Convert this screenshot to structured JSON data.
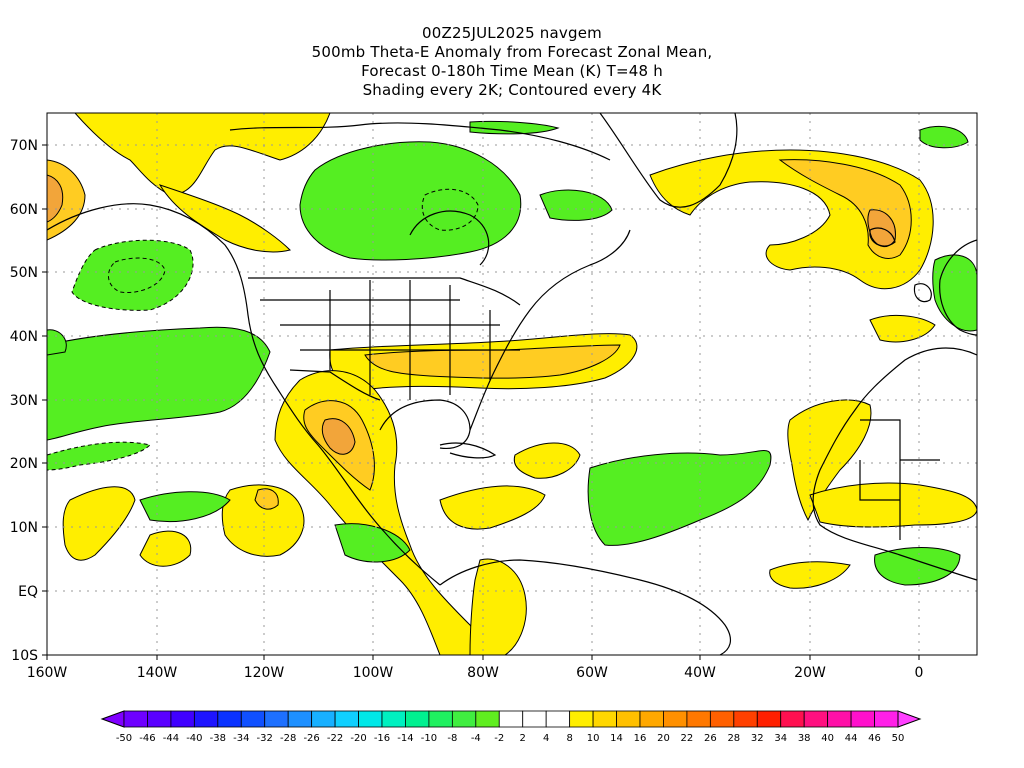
{
  "title": {
    "lines": [
      "00Z25JUL2025 navgem",
      "500mb Theta-E Anomaly from Forecast Zonal Mean,",
      "Forecast 0-180h Time Mean (K) T=48 h",
      "Shading every 2K; Contoured every 4K"
    ]
  },
  "map": {
    "lon_range": [
      -160,
      10
    ],
    "lat_range": [
      -10,
      75
    ],
    "lat_ticks": [
      "70N",
      "60N",
      "50N",
      "40N",
      "30N",
      "20N",
      "10N",
      "EQ",
      "10S"
    ],
    "lon_ticks": [
      "160W",
      "140W",
      "120W",
      "100W",
      "80W",
      "60W",
      "40W",
      "20W",
      "0"
    ],
    "gridlines": true,
    "colors": {
      "green": "#55ee22",
      "yellow": "#ffee00",
      "orange": "#ffcc22",
      "deep_orange": "#f2a53a"
    }
  },
  "colorbar": {
    "labels": [
      "-50",
      "-46",
      "-44",
      "-40",
      "-38",
      "-34",
      "-32",
      "-28",
      "-26",
      "-22",
      "-20",
      "-16",
      "-14",
      "-10",
      "-8",
      "-4",
      "-2",
      "2",
      "4",
      "8",
      "10",
      "14",
      "16",
      "20",
      "22",
      "26",
      "28",
      "32",
      "34",
      "38",
      "40",
      "44",
      "46",
      "50"
    ],
    "colors": [
      "#8000ff",
      "#6e00ff",
      "#5a00ff",
      "#4000ff",
      "#1e14ff",
      "#0a32ff",
      "#1050ff",
      "#1e70ff",
      "#1e90ff",
      "#18b0ff",
      "#10d0ff",
      "#00e8e8",
      "#00f0c0",
      "#00f090",
      "#20f060",
      "#40ee40",
      "#60ee20",
      "#ffffff",
      "#ffffff",
      "#ffffff",
      "#ffee00",
      "#ffd700",
      "#ffc000",
      "#ffa800",
      "#ff9000",
      "#ff7800",
      "#ff6000",
      "#ff4000",
      "#ff2000",
      "#ff1050",
      "#ff1080",
      "#ff10a8",
      "#ff10cc",
      "#ff20e8",
      "#ff40ff"
    ]
  }
}
